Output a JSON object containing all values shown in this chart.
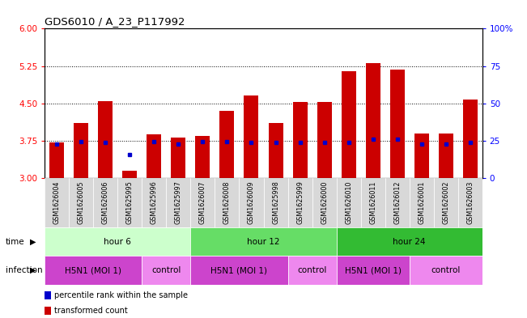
{
  "title": "GDS6010 / A_23_P117992",
  "samples": [
    "GSM1626004",
    "GSM1626005",
    "GSM1626006",
    "GSM1625995",
    "GSM1625996",
    "GSM1625997",
    "GSM1626007",
    "GSM1626008",
    "GSM1626009",
    "GSM1625998",
    "GSM1625999",
    "GSM1626000",
    "GSM1626010",
    "GSM1626011",
    "GSM1626012",
    "GSM1626001",
    "GSM1626002",
    "GSM1626003"
  ],
  "bar_heights": [
    3.72,
    4.1,
    4.55,
    3.15,
    3.88,
    3.82,
    3.84,
    4.35,
    4.65,
    4.1,
    4.52,
    4.52,
    5.15,
    5.3,
    5.17,
    3.9,
    3.9,
    4.57
  ],
  "blue_markers": [
    3.68,
    3.73,
    3.72,
    3.48,
    3.73,
    3.68,
    3.73,
    3.73,
    3.72,
    3.72,
    3.72,
    3.72,
    3.72,
    3.78,
    3.78,
    3.68,
    3.68,
    3.72
  ],
  "bar_color": "#cc0000",
  "marker_color": "#0000cc",
  "ylim_left": [
    3.0,
    6.0
  ],
  "yticks_left": [
    3.0,
    3.75,
    4.5,
    5.25,
    6.0
  ],
  "yticks_right_vals": [
    0,
    25,
    50,
    75,
    100
  ],
  "ylim_right": [
    0,
    100
  ],
  "hline_values": [
    3.75,
    4.5,
    5.25
  ],
  "time_groups": [
    {
      "label": "hour 6",
      "start": 0,
      "end": 6,
      "color": "#ccffcc"
    },
    {
      "label": "hour 12",
      "start": 6,
      "end": 12,
      "color": "#66dd66"
    },
    {
      "label": "hour 24",
      "start": 12,
      "end": 18,
      "color": "#33bb33"
    }
  ],
  "infection_groups": [
    {
      "label": "H5N1 (MOI 1)",
      "start": 0,
      "end": 4,
      "color": "#cc44cc"
    },
    {
      "label": "control",
      "start": 4,
      "end": 6,
      "color": "#ee88ee"
    },
    {
      "label": "H5N1 (MOI 1)",
      "start": 6,
      "end": 10,
      "color": "#cc44cc"
    },
    {
      "label": "control",
      "start": 10,
      "end": 12,
      "color": "#ee88ee"
    },
    {
      "label": "H5N1 (MOI 1)",
      "start": 12,
      "end": 15,
      "color": "#cc44cc"
    },
    {
      "label": "control",
      "start": 15,
      "end": 18,
      "color": "#ee88ee"
    }
  ],
  "legend_items": [
    {
      "label": "transformed count",
      "color": "#cc0000"
    },
    {
      "label": "percentile rank within the sample",
      "color": "#0000cc"
    }
  ]
}
